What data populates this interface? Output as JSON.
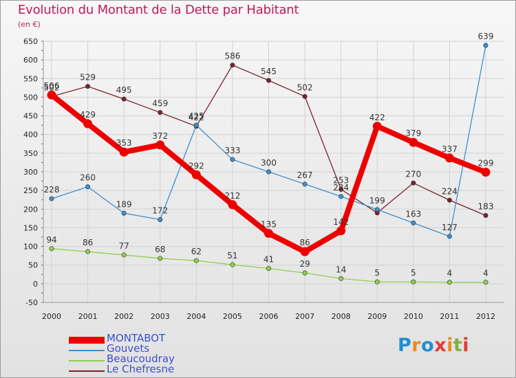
{
  "title": "Evolution du Montant de la Dette par Habitant",
  "subtitle": "(en €)",
  "logo": {
    "text": "Proxiti",
    "letter_colors": [
      "#1f8fd6",
      "#f08a1c",
      "#1f8fd6",
      "#e53935",
      "#f08a1c",
      "#7cb342",
      "#e53935"
    ]
  },
  "chart_data": {
    "type": "line",
    "title": "Evolution du Montant de la Dette par Habitant",
    "ylabel": "(en €)",
    "xlabel": "",
    "x": [
      "2000",
      "2001",
      "2002",
      "2003",
      "2004",
      "2005",
      "2006",
      "2007",
      "2008",
      "2009",
      "2010",
      "2011",
      "2012"
    ],
    "ylim": [
      -50,
      650
    ],
    "yticks": [
      -50,
      0,
      50,
      100,
      150,
      200,
      250,
      300,
      350,
      400,
      450,
      500,
      550,
      600,
      650
    ],
    "grid": true,
    "legend_position": "bottom-left",
    "series": [
      {
        "name": "Le Chefresne",
        "color": "#7b2230",
        "values": [
          502,
          529,
          495,
          459,
          422,
          586,
          545,
          502,
          253,
          190,
          270,
          224,
          183
        ],
        "labels": [
          "502",
          "529",
          "495",
          "459",
          "422",
          "586",
          "545",
          "502",
          "253",
          "",
          "270",
          "224",
          "183"
        ]
      },
      {
        "name": "Gouvets",
        "color": "#3d8ed1",
        "values": [
          228,
          260,
          189,
          172,
          425,
          333,
          300,
          267,
          234,
          199,
          163,
          127,
          639
        ],
        "labels": [
          "228",
          "260",
          "189",
          "172",
          "425",
          "333",
          "300",
          "267",
          "234",
          "199",
          "163",
          "127",
          "639"
        ]
      },
      {
        "name": "Beaucoudray",
        "color": "#8ed04a",
        "values": [
          94,
          86,
          77,
          68,
          62,
          51,
          41,
          29,
          14,
          5,
          5,
          4,
          4
        ],
        "labels": [
          "94",
          "86",
          "77",
          "68",
          "62",
          "51",
          "41",
          "29",
          "14",
          "5",
          "5",
          "4",
          "4"
        ]
      },
      {
        "name": "MONTABOT",
        "color": "#ee0000",
        "values": [
          506,
          429,
          353,
          372,
          292,
          212,
          135,
          86,
          142,
          422,
          379,
          337,
          299
        ],
        "labels": [
          "506",
          "429",
          "353",
          "372",
          "292",
          "212",
          "135",
          "86",
          "142",
          "422",
          "379",
          "337",
          "299"
        ]
      }
    ]
  },
  "legend": [
    {
      "name": "MONTABOT",
      "color": "#ee0000",
      "thick": true
    },
    {
      "name": "Gouvets",
      "color": "#3d8ed1",
      "thick": false
    },
    {
      "name": "Beaucoudray",
      "color": "#8ed04a",
      "thick": false
    },
    {
      "name": "Le Chefresne",
      "color": "#7b2230",
      "thick": false
    }
  ]
}
